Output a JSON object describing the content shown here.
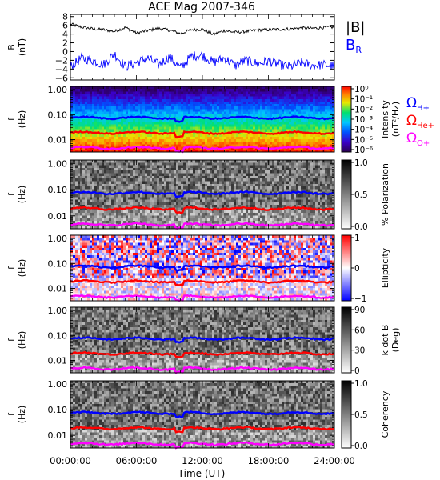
{
  "figure": {
    "title": "ACE Mag 2007-346",
    "xlabel": "Time (UT)",
    "x_ticks": [
      "00:00:00",
      "06:00:00",
      "12:00:00",
      "18:00:00",
      "24:00:00"
    ],
    "x_range_hours": [
      0,
      24
    ]
  },
  "chart_data": [
    {
      "type": "line",
      "panel": "field",
      "ylabel": [
        "B",
        "(nT)"
      ],
      "ylim": [
        -6.5,
        8.5
      ],
      "y_ticks": [
        "8",
        "6",
        "4",
        "2",
        "0",
        "−2",
        "−4",
        "−6"
      ],
      "y_tick_values": [
        8,
        6,
        4,
        2,
        0,
        -2,
        -4,
        -6
      ],
      "series": [
        {
          "name": "|B|",
          "color": "#000000",
          "x": [
            0,
            1,
            2,
            3,
            4,
            5,
            6,
            7,
            8,
            9,
            10,
            11,
            12,
            13,
            14,
            15,
            16,
            17,
            18,
            19,
            20,
            21,
            22,
            23,
            24
          ],
          "values": [
            6.3,
            5.6,
            5.2,
            5.0,
            4.6,
            5.5,
            4.2,
            4.8,
            5.3,
            4.9,
            4.1,
            5.0,
            5.1,
            3.9,
            4.8,
            4.4,
            4.6,
            4.9,
            5.0,
            5.1,
            5.2,
            5.4,
            5.3,
            5.5,
            5.6
          ]
        },
        {
          "name": "B_R",
          "color": "#0000ff",
          "x": [
            0,
            1,
            2,
            3,
            4,
            5,
            6,
            7,
            8,
            9,
            10,
            11,
            12,
            13,
            14,
            15,
            16,
            17,
            18,
            19,
            20,
            21,
            22,
            23,
            24
          ],
          "values": [
            -3.5,
            -1.5,
            -2.0,
            -3.0,
            -0.5,
            -3.5,
            -2.5,
            -1.5,
            -3.0,
            -1.2,
            -3.8,
            -1.0,
            -0.8,
            -2.5,
            -1.5,
            -3.2,
            -2.0,
            -2.8,
            -2.2,
            -3.0,
            -3.5,
            -2.5,
            -3.2,
            -3.0,
            -3.3
          ]
        }
      ],
      "legend": [
        {
          "text": "|B|",
          "color": "#000000"
        },
        {
          "text": "B",
          "sub": "R",
          "color": "#0000ff"
        }
      ]
    },
    {
      "type": "heatmap",
      "panel": "intensity",
      "ylabel": [
        "f",
        "(Hz)"
      ],
      "y_scale": "log",
      "ylim": [
        0.003,
        1.4
      ],
      "y_ticks": [
        "1.00",
        "0.10",
        "0.01"
      ],
      "colormap": "rainbow",
      "colorbar_label": [
        "Intensity",
        "(nT²/Hz)"
      ],
      "colorbar_ticks": [
        "10⁰",
        "10⁻¹",
        "10⁻²",
        "10⁻³",
        "10⁻⁴",
        "10⁻⁵",
        "10⁻⁶"
      ],
      "gyrofrequency_legend": [
        {
          "text": "Ω",
          "sub": "H+",
          "color": "#0000ff"
        },
        {
          "text": "Ω",
          "sub": "He+",
          "color": "#ff0000"
        },
        {
          "text": "Ω",
          "sub": "O+",
          "color": "#ff00ff"
        }
      ]
    },
    {
      "type": "heatmap",
      "panel": "polarization",
      "ylabel": [
        "f",
        "(Hz)"
      ],
      "y_scale": "log",
      "y_ticks": [
        "1.00",
        "0.10",
        "0.01"
      ],
      "colormap": "grayscale",
      "colorbar_label": [
        "% Polarization"
      ],
      "colorbar_ticks": [
        "1.0",
        "0.5",
        "0.0"
      ]
    },
    {
      "type": "heatmap",
      "panel": "ellipticity",
      "ylabel": [
        "f",
        "(Hz)"
      ],
      "y_scale": "log",
      "y_ticks": [
        "1.00",
        "0.10",
        "0.01"
      ],
      "colormap": "blue-white-red",
      "colorbar_label": [
        "Ellipticity"
      ],
      "colorbar_ticks": [
        "1",
        "0",
        "−1"
      ]
    },
    {
      "type": "heatmap",
      "panel": "kdotb",
      "ylabel": [
        "f",
        "(Hz)"
      ],
      "y_scale": "log",
      "y_ticks": [
        "1.00",
        "0.10",
        "0.01"
      ],
      "colormap": "grayscale",
      "colorbar_label": [
        "k dot B",
        "(Deg)"
      ],
      "colorbar_ticks": [
        "90",
        "60",
        "30",
        "0"
      ]
    },
    {
      "type": "heatmap",
      "panel": "coherency",
      "ylabel": [
        "f",
        "(Hz)"
      ],
      "y_scale": "log",
      "y_ticks": [
        "1.00",
        "0.10",
        "0.01"
      ],
      "colormap": "grayscale",
      "colorbar_label": [
        "Coherency"
      ],
      "colorbar_ticks": [
        "1.0",
        "0.5",
        "0.0"
      ]
    }
  ],
  "gyrofrequency_lines": [
    {
      "name": "ΩH+",
      "color": "#0000ff",
      "hz": 0.075
    },
    {
      "name": "ΩHe+",
      "color": "#ff0000",
      "hz": 0.019
    },
    {
      "name": "ΩO+",
      "color": "#ff00ff",
      "hz": 0.0047
    }
  ]
}
